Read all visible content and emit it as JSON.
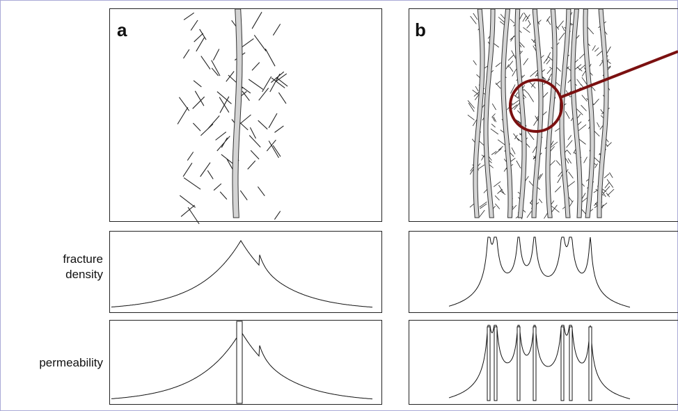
{
  "panels": [
    {
      "label": "a"
    },
    {
      "label": "b"
    }
  ],
  "row_labels": {
    "fracture_density": [
      "fracture",
      "density"
    ],
    "permeability": "permeability"
  }
}
